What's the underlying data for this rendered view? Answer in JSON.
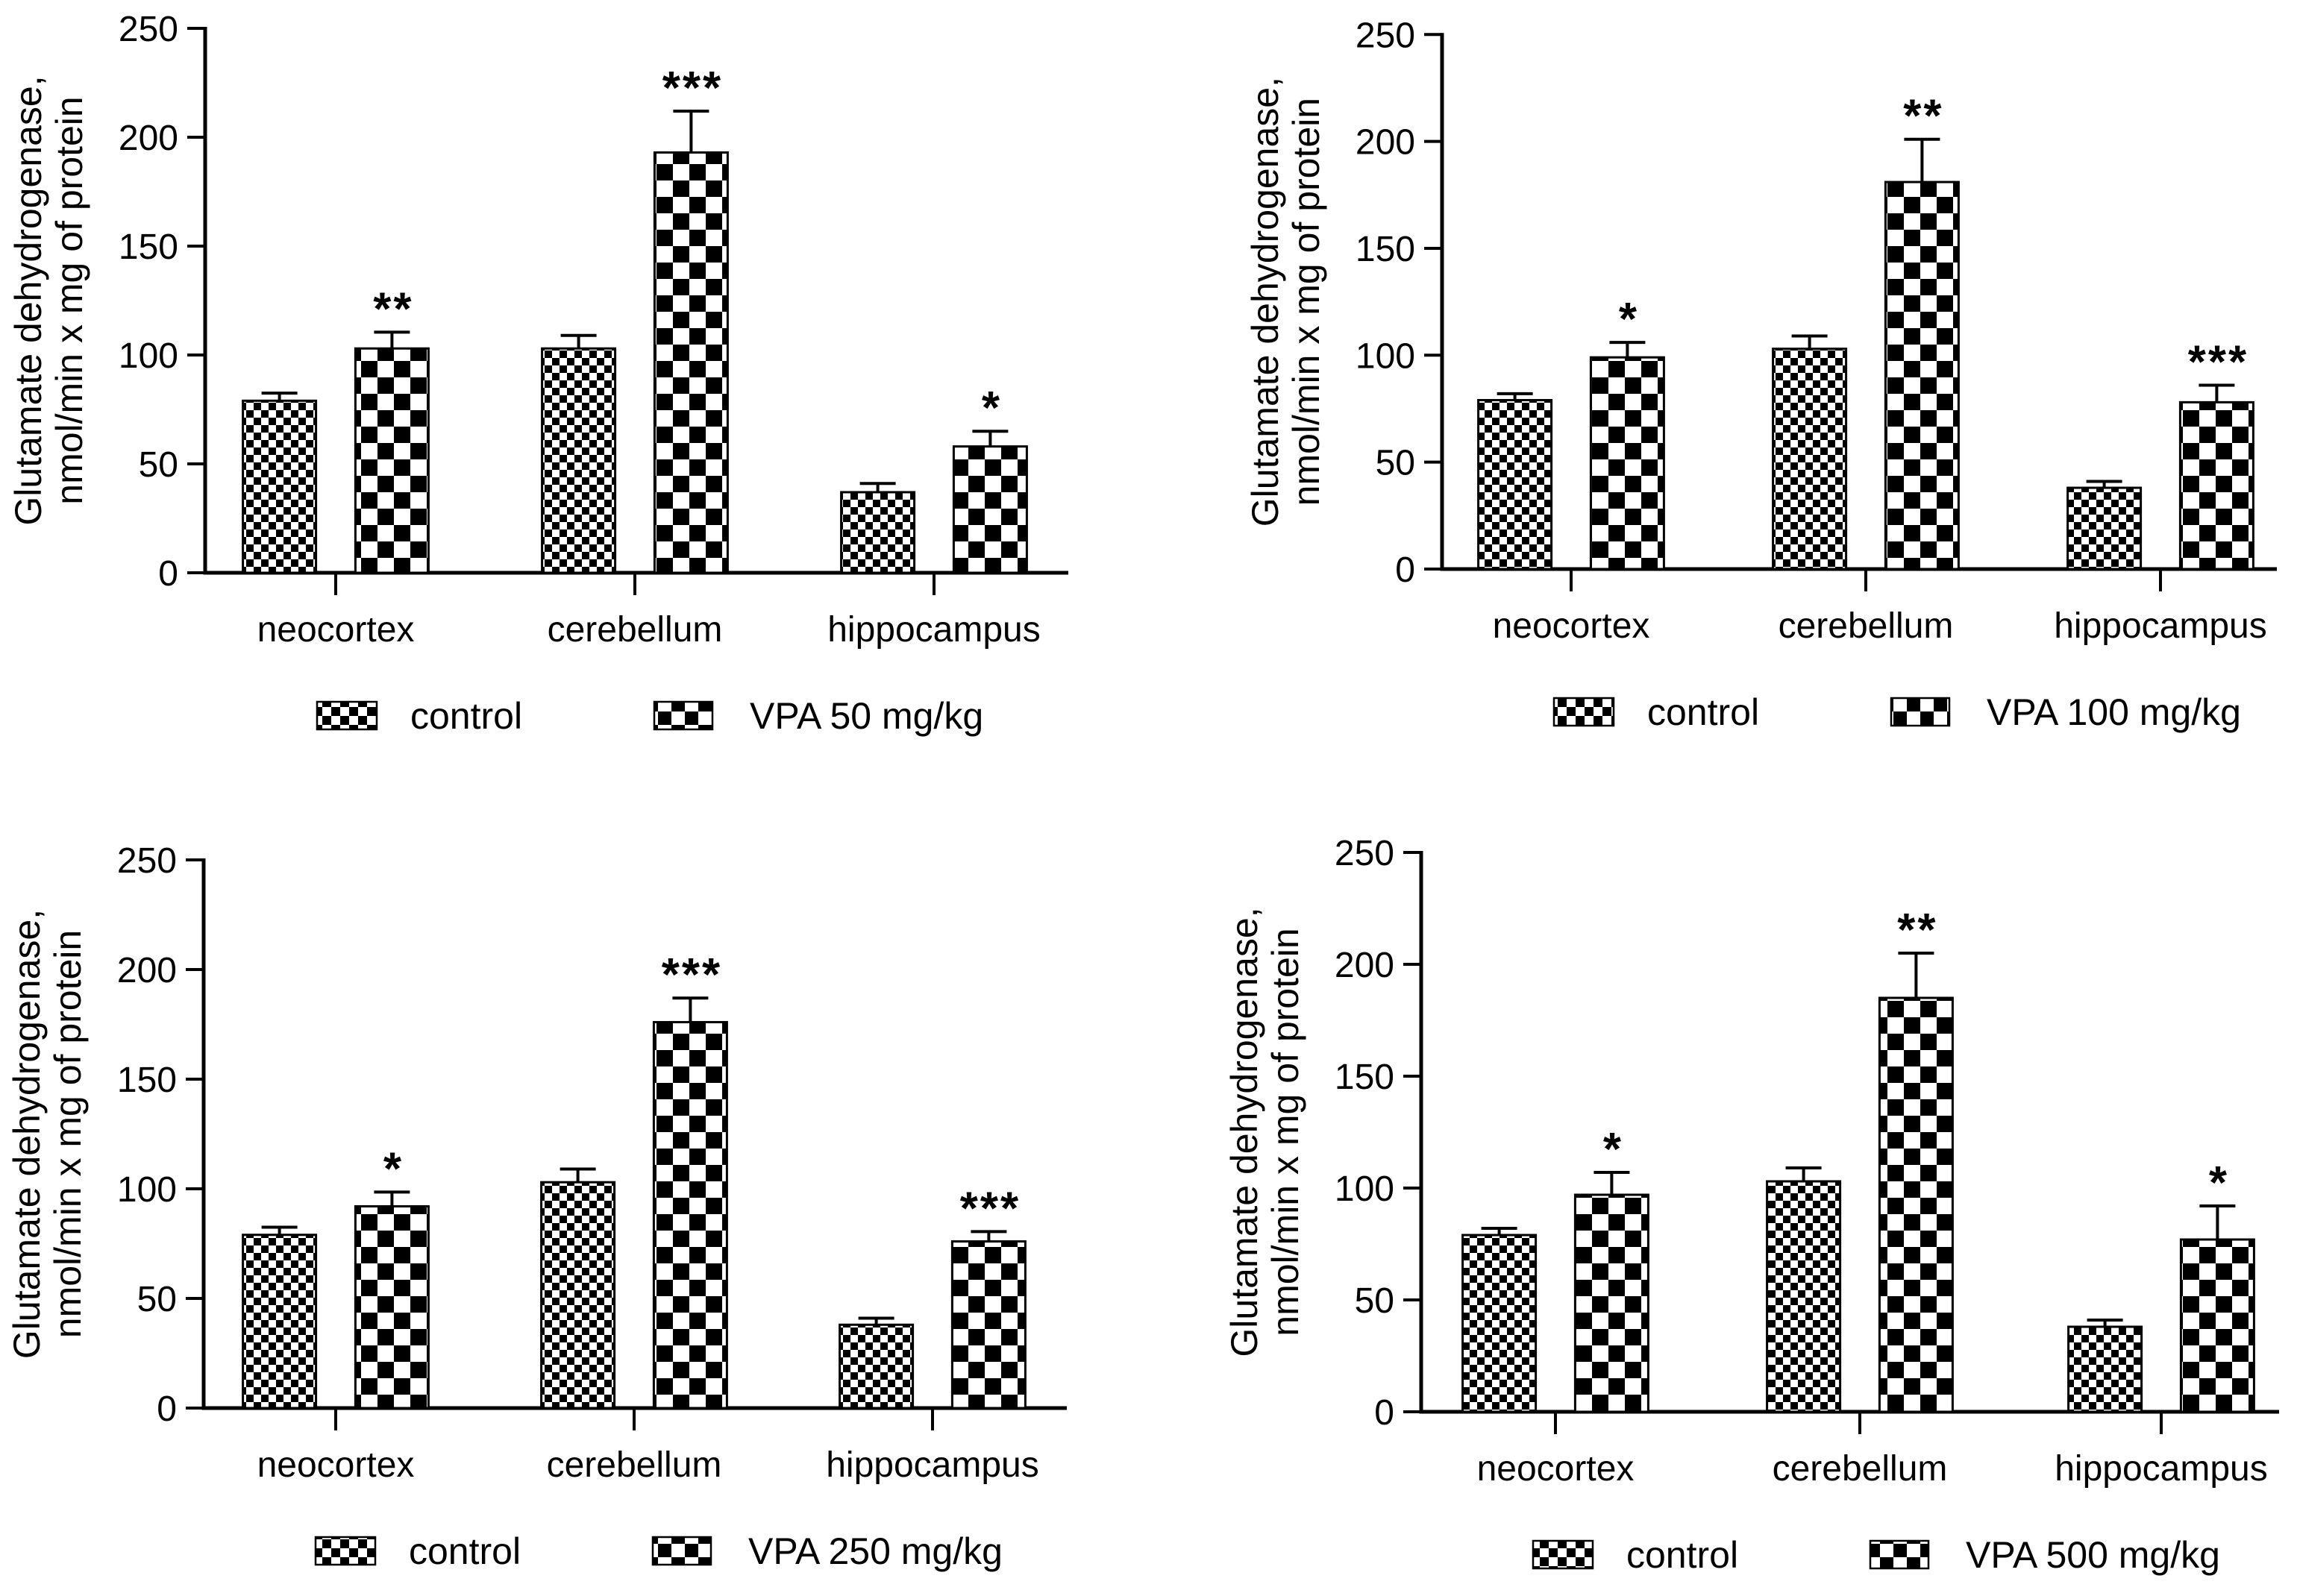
{
  "figure": {
    "background_color": "#ffffff",
    "ink_color": "#000000",
    "description": "Four bar-chart panels comparing glutamate dehydrogenase activity in control vs VPA-treated groups across brain regions"
  },
  "chart_data": [
    {
      "type": "bar",
      "panel_label": "VPA 50 mg/kg",
      "title": "",
      "ylabel_lines": [
        "Glutamate dehydrogenase,",
        "nmol/min x mg of protein"
      ],
      "categories": [
        "neocortex",
        "cerebellum",
        "hippocampus"
      ],
      "yticks": [
        0,
        50,
        100,
        150,
        200,
        250
      ],
      "ylim": [
        0,
        250
      ],
      "grid": "off",
      "legend_position": "bottom",
      "series": [
        {
          "name": "control",
          "pattern": "fine-checker",
          "values": [
            79,
            103,
            37
          ],
          "errors": [
            3.5,
            6,
            4
          ],
          "significance": [
            "",
            "",
            ""
          ]
        },
        {
          "name": "VPA 50 mg/kg",
          "pattern": "coarse-checker",
          "values": [
            103,
            193,
            58
          ],
          "errors": [
            7.5,
            19,
            7
          ],
          "significance": [
            "**",
            "***",
            "*"
          ]
        }
      ]
    },
    {
      "type": "bar",
      "panel_label": "VPA 100 mg/kg",
      "title": "",
      "ylabel_lines": [
        "Glutamate dehydrogenase,",
        "nmol/min x mg of protein"
      ],
      "categories": [
        "neocortex",
        "cerebellum",
        "hippocampus"
      ],
      "yticks": [
        0,
        50,
        100,
        150,
        200,
        250
      ],
      "ylim": [
        0,
        250
      ],
      "grid": "off",
      "legend_position": "bottom",
      "series": [
        {
          "name": "control",
          "pattern": "fine-checker",
          "values": [
            79,
            103,
            38
          ],
          "errors": [
            3,
            6,
            3
          ],
          "significance": [
            "",
            "",
            ""
          ]
        },
        {
          "name": "VPA 100 mg/kg",
          "pattern": "coarse-checker",
          "values": [
            99,
            181,
            78
          ],
          "errors": [
            7,
            20,
            8
          ],
          "significance": [
            "*",
            "**",
            "***"
          ]
        }
      ]
    },
    {
      "type": "bar",
      "panel_label": "VPA 250 mg/kg",
      "title": "",
      "ylabel_lines": [
        "Glutamate dehydrogenase,",
        "nmol/min x mg of protein"
      ],
      "categories": [
        "neocortex",
        "cerebellum",
        "hippocampus"
      ],
      "yticks": [
        0,
        50,
        100,
        150,
        200,
        250
      ],
      "ylim": [
        0,
        250
      ],
      "grid": "off",
      "legend_position": "bottom",
      "series": [
        {
          "name": "control",
          "pattern": "fine-checker",
          "values": [
            79,
            103,
            38
          ],
          "errors": [
            3.5,
            6,
            3
          ],
          "significance": [
            "",
            "",
            ""
          ]
        },
        {
          "name": "VPA 250 mg/kg",
          "pattern": "coarse-checker",
          "values": [
            92,
            176,
            76
          ],
          "errors": [
            6.5,
            11,
            4.5
          ],
          "significance": [
            "*",
            "***",
            "***"
          ]
        }
      ]
    },
    {
      "type": "bar",
      "panel_label": "VPA 500 mg/kg",
      "title": "",
      "ylabel_lines": [
        "Glutamate dehydrogenase,",
        "nmol/min x mg of  protein"
      ],
      "categories": [
        "neocortex",
        "cerebellum",
        "hippocampus"
      ],
      "yticks": [
        0,
        50,
        100,
        150,
        200,
        250
      ],
      "ylim": [
        0,
        250
      ],
      "grid": "off",
      "legend_position": "bottom",
      "series": [
        {
          "name": "control",
          "pattern": "fine-checker",
          "values": [
            79,
            103,
            38
          ],
          "errors": [
            3,
            6,
            3
          ],
          "significance": [
            "",
            "",
            ""
          ]
        },
        {
          "name": "VPA 500 mg/kg",
          "pattern": "coarse-checker",
          "values": [
            97,
            185,
            77
          ],
          "errors": [
            10,
            20,
            15
          ],
          "significance": [
            "*",
            "**",
            "*"
          ]
        }
      ]
    }
  ]
}
